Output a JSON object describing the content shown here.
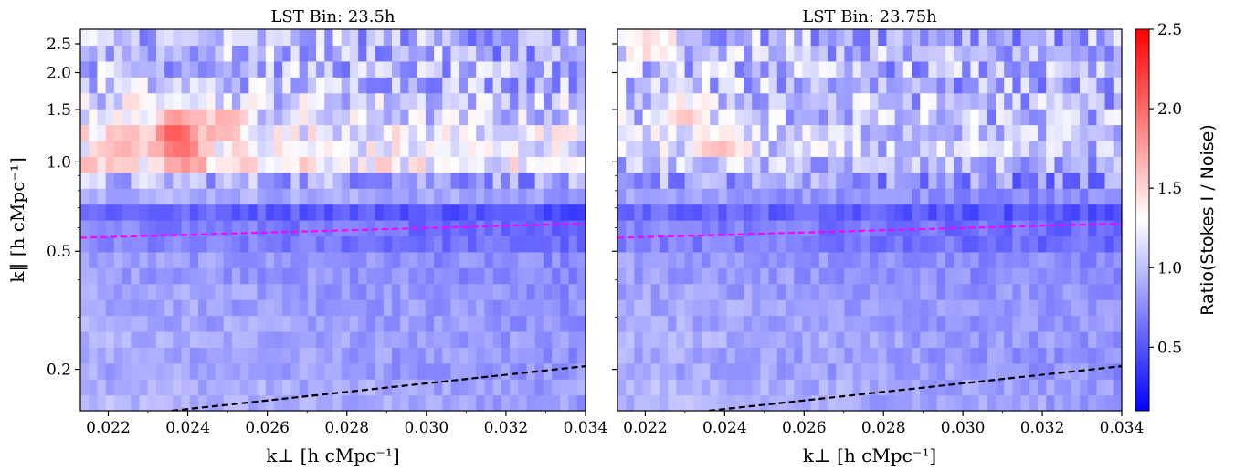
{
  "chart_data": {
    "type": "heatmap",
    "panels": [
      {
        "title": "LST Bin: 23.5h",
        "ylabel": "k‖ [h cMpc⁻¹]",
        "xlabel": "k⊥ [h cMpc⁻¹]",
        "xlim": [
          0.0213,
          0.034
        ],
        "ylim": [
          0.145,
          2.8
        ],
        "yscale": "log",
        "x_ticks": [
          "0.022",
          "0.024",
          "0.026",
          "0.028",
          "0.030",
          "0.032",
          "0.034"
        ],
        "x_tick_values": [
          0.022,
          0.024,
          0.026,
          0.028,
          0.03,
          0.032,
          0.034
        ],
        "y_ticks": [
          "0.2",
          "0.5",
          "1.0",
          "1.5",
          "2.0",
          "2.5"
        ],
        "y_tick_values": [
          0.2,
          0.5,
          1.0,
          1.5,
          2.0,
          2.5
        ],
        "band_ratio": [
          0.95,
          0.9,
          0.92,
          0.9,
          0.88,
          0.85,
          0.72,
          0.6,
          0.95,
          1.35,
          1.3,
          1.15,
          1.05,
          1.0,
          1.0
        ],
        "hot_spots": [
          {
            "x": 0.0237,
            "y": 1.2,
            "ratio": 2.3
          },
          {
            "x": 0.0239,
            "y": 1.05,
            "ratio": 2.0
          },
          {
            "x": 0.0237,
            "y": 1.45,
            "ratio": 1.8
          },
          {
            "x": 0.0223,
            "y": 1.15,
            "ratio": 1.7
          },
          {
            "x": 0.0249,
            "y": 1.35,
            "ratio": 1.8
          }
        ],
        "horizon_line_magenta": {
          "x": [
            0.0213,
            0.034
          ],
          "y": [
            0.555,
            0.62
          ]
        },
        "horizon_line_black": {
          "x": [
            0.0236,
            0.034
          ],
          "y": [
            0.145,
            0.205
          ]
        }
      },
      {
        "title": "LST Bin: 23.75h",
        "ylabel": "",
        "xlabel": "k⊥ [h cMpc⁻¹]",
        "xlim": [
          0.0213,
          0.034
        ],
        "ylim": [
          0.145,
          2.8
        ],
        "yscale": "log",
        "x_ticks": [
          "0.022",
          "0.024",
          "0.026",
          "0.028",
          "0.030",
          "0.032",
          "0.034"
        ],
        "x_tick_values": [
          0.022,
          0.024,
          0.026,
          0.028,
          0.03,
          0.032,
          0.034
        ],
        "y_ticks": [
          "0.2",
          "0.5",
          "1.0",
          "1.5",
          "2.0",
          "2.5"
        ],
        "y_tick_values": [
          0.2,
          0.5,
          1.0,
          1.5,
          2.0,
          2.5
        ],
        "band_ratio": [
          0.95,
          0.9,
          0.92,
          0.9,
          0.88,
          0.85,
          0.72,
          0.6,
          0.85,
          1.0,
          1.1,
          1.05,
          1.0,
          1.0,
          1.0
        ],
        "hot_spots": [
          {
            "x": 0.0239,
            "y": 1.15,
            "ratio": 1.7
          },
          {
            "x": 0.023,
            "y": 1.45,
            "ratio": 1.6
          },
          {
            "x": 0.0222,
            "y": 2.5,
            "ratio": 1.6
          }
        ],
        "horizon_line_magenta": {
          "x": [
            0.0213,
            0.034
          ],
          "y": [
            0.555,
            0.62
          ]
        },
        "horizon_line_black": {
          "x": [
            0.0236,
            0.034
          ],
          "y": [
            0.145,
            0.205
          ]
        }
      }
    ],
    "colorbar": {
      "label": "Ratio(Stokes I / Noise)",
      "range": [
        0.1,
        2.5
      ],
      "ticks": [
        "0.5",
        "1.0",
        "1.5",
        "2.0",
        "2.5"
      ],
      "tick_values": [
        0.5,
        1.0,
        1.5,
        2.0,
        2.5
      ],
      "colormap": "bwr",
      "colors": {
        "low": "#0000ff",
        "mid": "#ffffff",
        "high": "#ff0000"
      }
    }
  }
}
